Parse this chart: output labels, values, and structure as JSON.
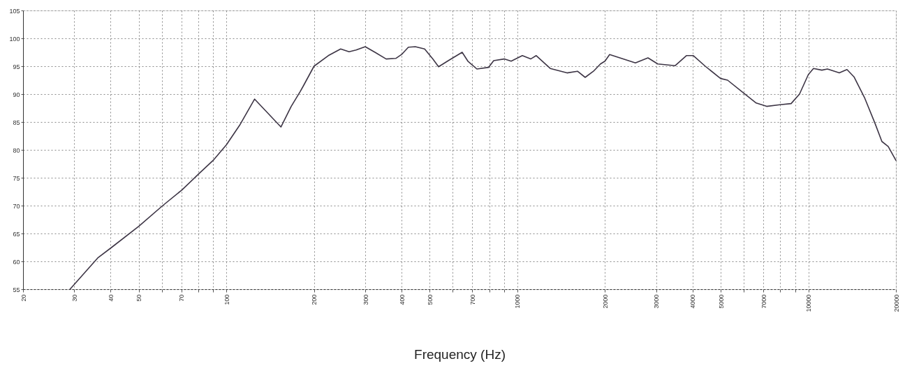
{
  "chart_data": {
    "type": "line",
    "xlabel": "Frequency (Hz)",
    "log": "x",
    "grid": true,
    "xlim": [
      20,
      20000
    ],
    "ylim": [
      55,
      105
    ],
    "xticks": [
      20,
      30,
      40,
      50,
      {
        "value": 60,
        "label": null
      },
      70,
      {
        "value": 80,
        "label": null
      },
      {
        "value": 90,
        "label": null
      },
      100,
      200,
      300,
      400,
      500,
      {
        "value": 600,
        "label": null
      },
      700,
      {
        "value": 800,
        "label": null
      },
      {
        "value": 900,
        "label": null
      },
      1000,
      2000,
      3000,
      4000,
      5000,
      {
        "value": 6000,
        "label": null
      },
      7000,
      {
        "value": 8000,
        "label": null
      },
      {
        "value": 9000,
        "label": null
      },
      10000,
      20000
    ],
    "yticks": [
      55,
      60,
      65,
      70,
      75,
      80,
      85,
      90,
      95,
      100,
      105
    ],
    "x": [
      29,
      36.1,
      40.3,
      50,
      60.4,
      70.3,
      80,
      90,
      100,
      111,
      125,
      154,
      167,
      179,
      184,
      200,
      224,
      247,
      264,
      279,
      300,
      324,
      354,
      382,
      400,
      422,
      446,
      480,
      512,
      536,
      579,
      646,
      676,
      726,
      797,
      829,
      901,
      952,
      1040,
      1111,
      1161,
      1297,
      1481,
      1609,
      1710,
      1826,
      1930,
      2000,
      2075,
      2279,
      2545,
      2811,
      3037,
      3487,
      3810,
      4026,
      4423,
      4993,
      5277,
      5926,
      6619,
      7190,
      7985,
      8725,
      9325,
      10000,
      10416,
      11130,
      11634,
      12778,
      13578,
      14350,
      15590,
      16937,
      17898,
      18812,
      20000
    ],
    "series": [
      {
        "color": "#3d3545",
        "values": [
          55,
          60.6,
          62.5,
          66.3,
          70,
          72.8,
          75.6,
          78.1,
          80.9,
          84.4,
          89.1,
          84.1,
          87.8,
          90.4,
          91.5,
          95.0,
          96.9,
          98.1,
          97.6,
          97.9,
          98.5,
          97.5,
          96.3,
          96.4,
          97.1,
          98.4,
          98.5,
          98.1,
          96.3,
          94.9,
          96,
          97.5,
          95.9,
          94.5,
          94.8,
          96,
          96.3,
          95.9,
          96.9,
          96.3,
          96.9,
          94.6,
          93.8,
          94.1,
          93,
          94.1,
          95.4,
          95.9,
          97.1,
          96.4,
          95.6,
          96.5,
          95.4,
          95.1,
          96.9,
          96.9,
          95,
          92.8,
          92.5,
          90.4,
          88.4,
          87.8,
          88.1,
          88.3,
          90,
          93.5,
          94.6,
          94.3,
          94.5,
          93.8,
          94.4,
          93.1,
          89.4,
          84.8,
          81.5,
          80.6,
          78.1
        ]
      }
    ]
  }
}
